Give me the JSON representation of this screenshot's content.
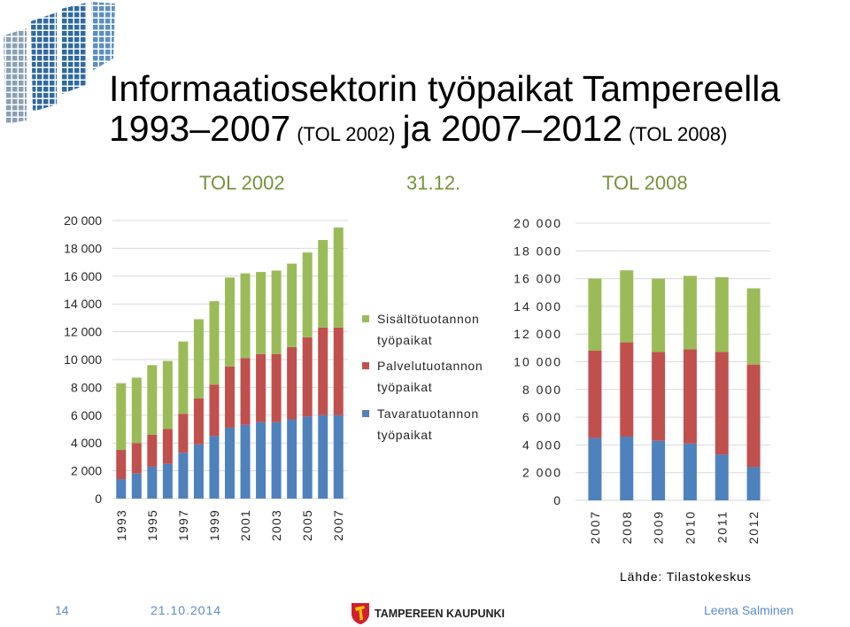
{
  "slide": {
    "title_line1": "Informaatiosektorin työpaikat Tampereella",
    "title_period1": "1993–2007",
    "title_classification1": "(TOL 2002)",
    "title_period2": "ja 2007–2012",
    "title_classification2": "(TOL 2008)",
    "reference_date": "31.12.",
    "source": "Lähde: Tilastokeskus"
  },
  "footer": {
    "page_number": "14",
    "date": "21.10.2014",
    "logo_text": "TAMPEREEN KAUPUNKI",
    "author": "Leena Salminen"
  },
  "icons": {
    "header_logo": "informaatio-grid-logo",
    "footer_logo": "tampere-coat-of-arms-icon"
  },
  "colors": {
    "title": "#000000",
    "section_label": "#76923c",
    "footer_text": "#5b8bc9",
    "tavaratuotanto": "#4f81bd",
    "palvelutuotanto": "#c0504d",
    "sisaltotuotanto": "#9bbb59",
    "gridline": "#d9d9d9"
  },
  "chart_data": [
    {
      "type": "bar",
      "stacked": true,
      "title": "TOL 2002",
      "x": [
        1993,
        1994,
        1995,
        1996,
        1997,
        1998,
        1999,
        2000,
        2001,
        2002,
        2003,
        2004,
        2005,
        2006,
        2007
      ],
      "x_tick_labels": [
        "1993",
        "1995",
        "1997",
        "1999",
        "2001",
        "2003",
        "2005",
        "2007"
      ],
      "ylim": [
        0,
        20000
      ],
      "y_ticks": [
        0,
        2000,
        4000,
        6000,
        8000,
        10000,
        12000,
        14000,
        16000,
        18000,
        20000
      ],
      "y_tick_labels": [
        "0",
        "2 000",
        "4 000",
        "6 000",
        "8 000",
        "10 000",
        "12 000",
        "14 000",
        "16 000",
        "18 000",
        "20 000"
      ],
      "grid": true,
      "legend": "right",
      "series": [
        {
          "name": "Tavaratuotannon työpaikat",
          "color": "#4f81bd",
          "values": [
            1400,
            1800,
            2300,
            2500,
            3300,
            3900,
            4500,
            5100,
            5300,
            5500,
            5500,
            5700,
            5900,
            6000,
            6000
          ]
        },
        {
          "name": "Palvelutuotannon työpaikat",
          "color": "#c0504d",
          "values": [
            2100,
            2200,
            2300,
            2500,
            2800,
            3300,
            3700,
            4400,
            4800,
            4900,
            4900,
            5200,
            5700,
            6300,
            6300
          ]
        },
        {
          "name": "Sisältötuotannon työpaikat",
          "color": "#9bbb59",
          "values": [
            4800,
            4700,
            5000,
            4900,
            5200,
            5700,
            6000,
            6400,
            6100,
            5900,
            6000,
            6000,
            6100,
            6300,
            7200
          ]
        }
      ]
    },
    {
      "type": "bar",
      "stacked": true,
      "title": "TOL 2008",
      "x": [
        2007,
        2008,
        2009,
        2010,
        2011,
        2012
      ],
      "x_tick_labels": [
        "2007",
        "2008",
        "2009",
        "2010",
        "2011",
        "2012"
      ],
      "ylim": [
        0,
        20000
      ],
      "y_ticks": [
        0,
        2000,
        4000,
        6000,
        8000,
        10000,
        12000,
        14000,
        16000,
        18000,
        20000
      ],
      "y_tick_labels": [
        "0",
        "2 000",
        "4 000",
        "6 000",
        "8 000",
        "10 000",
        "12 000",
        "14 000",
        "16 000",
        "18 000",
        "20 000"
      ],
      "grid": true,
      "legend": "left",
      "series": [
        {
          "name": "Tavaratuotannon työpaikat",
          "color": "#4f81bd",
          "values": [
            4500,
            4600,
            4300,
            4100,
            3300,
            2400
          ]
        },
        {
          "name": "Palvelutuotannon työpaikat",
          "color": "#c0504d",
          "values": [
            6300,
            6800,
            6400,
            6800,
            7400,
            7400
          ]
        },
        {
          "name": "Sisältötuotannon työpaikat",
          "color": "#9bbb59",
          "values": [
            5200,
            5200,
            5300,
            5300,
            5400,
            5500
          ]
        }
      ]
    }
  ]
}
